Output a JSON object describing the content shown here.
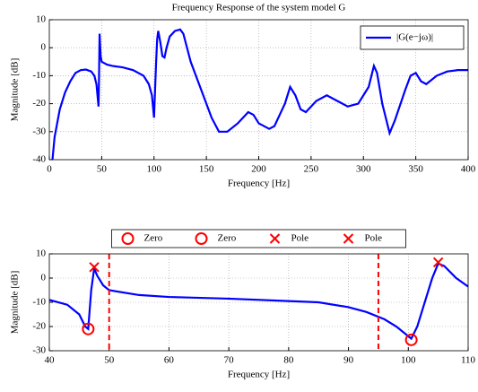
{
  "chart_data": [
    {
      "type": "line",
      "title": "Frequency Response of the system model G",
      "xlabel": "Frequency [Hz]",
      "ylabel": "Magnitude [dB]",
      "x": [
        3,
        5,
        10,
        15,
        20,
        25,
        30,
        35,
        40,
        43,
        45,
        46,
        47,
        47.5,
        48,
        49,
        50,
        55,
        60,
        70,
        80,
        90,
        95,
        98,
        100,
        101,
        102,
        103,
        104,
        106,
        108,
        110,
        112,
        115,
        120,
        125,
        128,
        135,
        145,
        155,
        162,
        170,
        180,
        190,
        195,
        200,
        210,
        215,
        225,
        230,
        235,
        240,
        245,
        255,
        265,
        275,
        285,
        295,
        305,
        310,
        313,
        318,
        325,
        330,
        340,
        345,
        350,
        355,
        360,
        370,
        380,
        390,
        400
      ],
      "series": [
        {
          "name": "|G(e−jω)|",
          "color": "#0000ff",
          "values": [
            -40,
            -32,
            -22,
            -16,
            -12,
            -9,
            -8,
            -7.8,
            -8.5,
            -10,
            -13,
            -17,
            -21,
            -10,
            5,
            -3,
            -5,
            -6,
            -6.5,
            -7,
            -8,
            -10,
            -13,
            -17,
            -25,
            -15,
            -5,
            3,
            6,
            2,
            -3,
            -3.5,
            0,
            4,
            6,
            6.5,
            5,
            -5,
            -15,
            -25,
            -30,
            -30,
            -27,
            -23,
            -24,
            -27,
            -29,
            -28,
            -20,
            -14,
            -17,
            -22,
            -23,
            -19,
            -17,
            -19,
            -21,
            -20,
            -14,
            -6.5,
            -9,
            -20,
            -30.5,
            -26,
            -15,
            -10,
            -9,
            -12,
            -13,
            -10,
            -8.5,
            -8,
            -8
          ]
        }
      ],
      "xlim": [
        0,
        400
      ],
      "xticks": [
        0,
        50,
        100,
        150,
        200,
        250,
        300,
        350,
        400
      ],
      "ylim": [
        -40,
        10
      ],
      "yticks": [
        -40,
        -30,
        -20,
        -10,
        0,
        10
      ],
      "grid": true,
      "legend": "northeast"
    },
    {
      "type": "line",
      "xlabel": "Frequency [Hz]",
      "ylabel": "Magnitude [dB]",
      "x": [
        40,
        43,
        45,
        46,
        46.5,
        47,
        47.5,
        48,
        49,
        50,
        55,
        60,
        70,
        80,
        85,
        90,
        93,
        96,
        98,
        99.5,
        100.5,
        101.5,
        103,
        104,
        105,
        106,
        108,
        110
      ],
      "values": [
        -9,
        -11,
        -15,
        -20,
        -21,
        -5,
        4,
        1,
        -3,
        -5,
        -7,
        -7.8,
        -8.5,
        -9.5,
        -10,
        -12,
        -14,
        -17,
        -20,
        -23,
        -25,
        -20,
        -8,
        0,
        6,
        5,
        0,
        -3.5
      ],
      "color": "#0000ff",
      "markers": [
        {
          "name": "Zero",
          "marker": "o",
          "color": "#ff0000",
          "x": [
            46.5
          ],
          "y": [
            -21
          ]
        },
        {
          "name": "Zero",
          "marker": "o",
          "color": "#ff0000",
          "x": [
            100.5
          ],
          "y": [
            -25.5
          ]
        },
        {
          "name": "Pole",
          "marker": "x",
          "color": "#ff0000",
          "x": [
            47.5
          ],
          "y": [
            4.5
          ]
        },
        {
          "name": "Pole",
          "marker": "x",
          "color": "#ff0000",
          "x": [
            105
          ],
          "y": [
            6.5
          ]
        }
      ],
      "vlines": [
        50,
        95
      ],
      "vline_color": "#ff0000",
      "xlim": [
        40,
        110
      ],
      "xticks": [
        40,
        50,
        60,
        70,
        80,
        90,
        100,
        110
      ],
      "ylim": [
        -30,
        10
      ],
      "yticks": [
        -30,
        -20,
        -10,
        0,
        10
      ],
      "grid": true,
      "legend": "northoutside"
    }
  ]
}
